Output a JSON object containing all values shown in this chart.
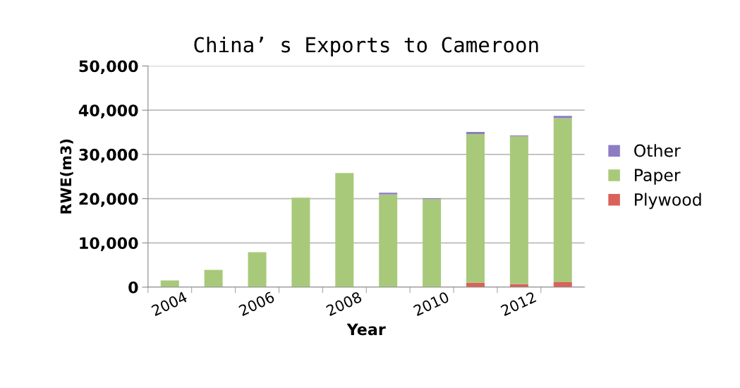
{
  "chart_data": {
    "type": "bar",
    "stacked": true,
    "title": "China’ s Exports to Cameroon",
    "xlabel": "Year",
    "ylabel": "RWE(m3)",
    "categories": [
      "2004",
      null,
      "2006",
      null,
      "2008",
      null,
      "2010",
      null,
      "2012",
      null
    ],
    "series": [
      {
        "name": "Plywood",
        "color": "#d9625a",
        "values": [
          0,
          0,
          0,
          0,
          0,
          0,
          0,
          1000,
          700,
          1100
        ]
      },
      {
        "name": "Paper",
        "color": "#a8c97a",
        "values": [
          1500,
          3900,
          7900,
          20200,
          25800,
          20950,
          19900,
          33600,
          33400,
          37100
        ]
      },
      {
        "name": "Other",
        "color": "#8e7cc3",
        "values": [
          0,
          0,
          0,
          0,
          0,
          400,
          200,
          500,
          200,
          500
        ]
      }
    ],
    "ylim": [
      0,
      50000
    ],
    "yticks": [
      {
        "value": 0,
        "label": "0"
      },
      {
        "value": 10000,
        "label": "10,000"
      },
      {
        "value": 20000,
        "label": "20,000"
      },
      {
        "value": 30000,
        "label": "30,000"
      },
      {
        "value": 40000,
        "label": "40,000"
      },
      {
        "value": 50000,
        "label": "50,000"
      }
    ],
    "grid": "y",
    "legend": "right"
  }
}
